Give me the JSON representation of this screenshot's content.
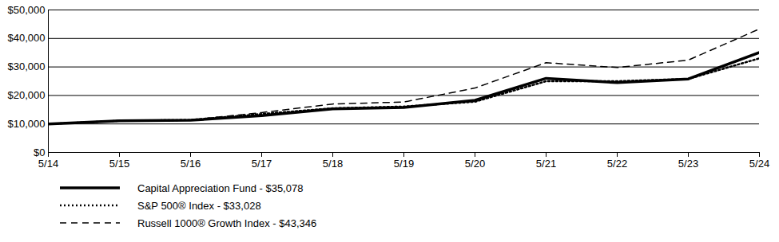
{
  "chart_data": {
    "type": "line",
    "x": [
      "5/14",
      "5/15",
      "5/16",
      "5/17",
      "5/18",
      "5/19",
      "5/20",
      "5/21",
      "5/22",
      "5/23",
      "5/24"
    ],
    "series": [
      {
        "name": "Capital Appreciation Fund - $35,078",
        "color": "#000000",
        "line_style": "solid",
        "values": [
          10000,
          11100,
          11300,
          12900,
          15300,
          15800,
          18300,
          26000,
          24500,
          25800,
          35078
        ]
      },
      {
        "name": "S&P 500® Index - $33,028",
        "color": "#000000",
        "line_style": "dotted",
        "values": [
          10000,
          11100,
          11400,
          13500,
          15500,
          16100,
          17800,
          25000,
          25000,
          25800,
          33028
        ]
      },
      {
        "name": "Russell 1000® Growth Index - $43,346",
        "color": "#000000",
        "line_style": "dashed",
        "values": [
          10000,
          11000,
          11400,
          14000,
          17000,
          17700,
          22600,
          31500,
          29800,
          32400,
          43346
        ]
      }
    ],
    "ylim": [
      0,
      50000
    ],
    "yticks": [
      {
        "value": 0,
        "label": "$0"
      },
      {
        "value": 10000,
        "label": "$10,000"
      },
      {
        "value": 20000,
        "label": "$20,000"
      },
      {
        "value": 30000,
        "label": "$30,000"
      },
      {
        "value": 40000,
        "label": "$40,000"
      },
      {
        "value": 50000,
        "label": "$50,000"
      }
    ],
    "grid": true
  }
}
